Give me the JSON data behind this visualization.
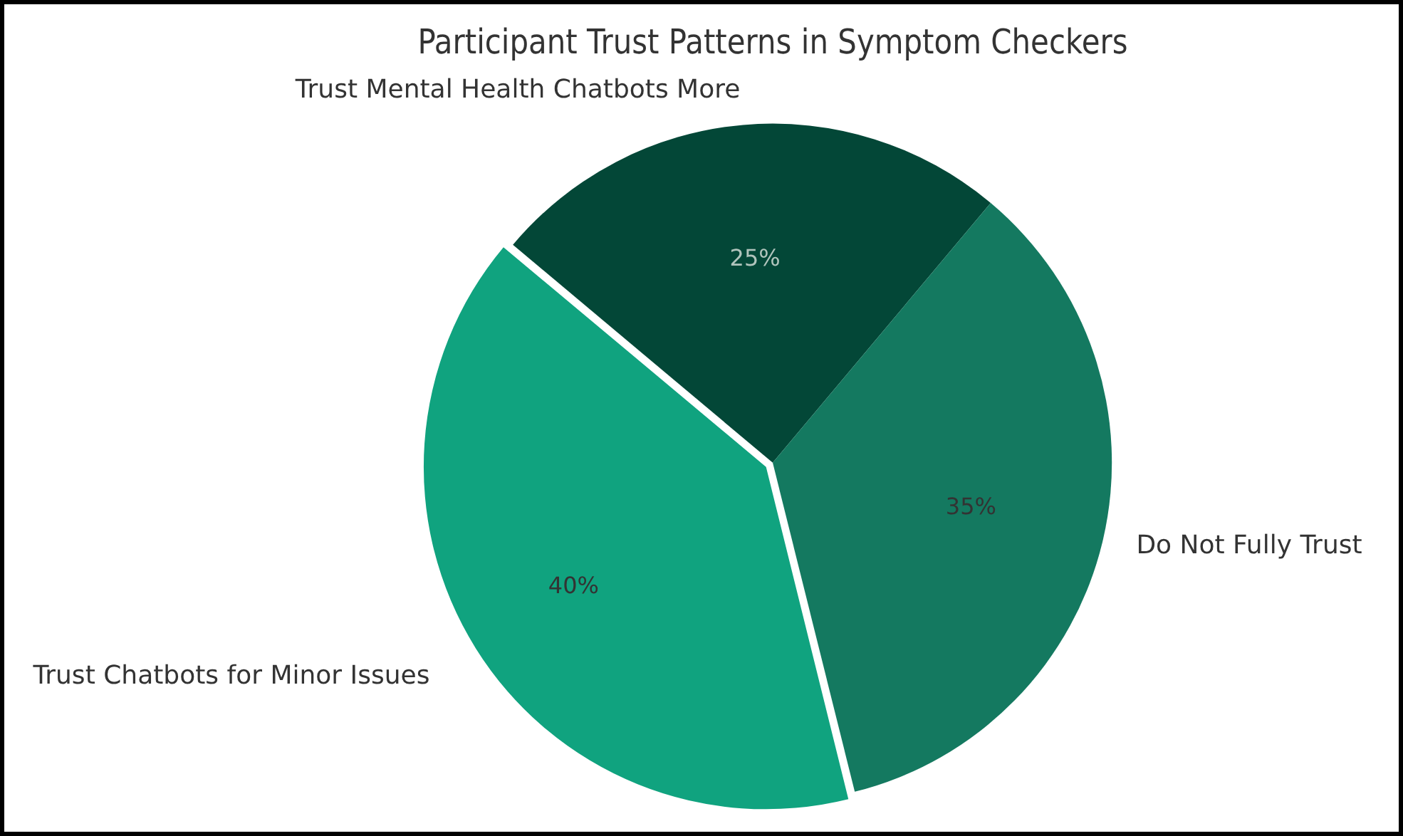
{
  "chart_data": {
    "type": "pie",
    "title": "Participant Trust Patterns in Symptom Checkers",
    "categories": [
      "Trust Mental Health Chatbots More",
      "Do Not Fully Trust",
      "Trust Chatbots for Minor Issues"
    ],
    "values": [
      25,
      35,
      40
    ],
    "colors": [
      "#034737",
      "#147960",
      "#10a37f"
    ],
    "value_labels": [
      "25%",
      "35%",
      "40%"
    ],
    "legend": false
  }
}
